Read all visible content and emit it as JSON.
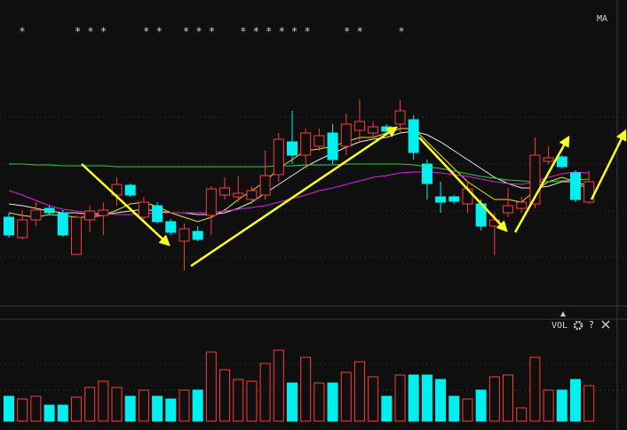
{
  "chart_data": [
    {
      "type": "candlestick",
      "label": "MA",
      "markers": [
        "*",
        "* * *",
        "* *",
        "* * *",
        "* * * * * *",
        "* *",
        "*"
      ],
      "ylim": [
        0,
        350
      ],
      "up_color": "#ff3b3b",
      "down_color": "#00f0f0",
      "open": [
        105,
        82,
        102,
        115,
        110,
        63,
        102,
        107,
        130,
        141,
        105,
        118,
        100,
        78,
        89,
        107,
        130,
        128,
        125,
        130,
        153,
        190,
        175,
        185,
        200,
        185,
        203,
        200,
        207,
        210,
        215,
        165,
        128,
        128,
        120,
        120,
        95,
        110,
        115,
        120,
        168,
        173,
        155,
        122
      ],
      "high": [
        110,
        113,
        122,
        118,
        113,
        107,
        118,
        122,
        150,
        143,
        128,
        122,
        103,
        98,
        95,
        140,
        150,
        152,
        140,
        180,
        200,
        225,
        205,
        205,
        210,
        222,
        238,
        213,
        210,
        237,
        220,
        170,
        145,
        130,
        145,
        125,
        110,
        138,
        128,
        195,
        185,
        175,
        158,
        157
      ],
      "low": [
        82,
        80,
        95,
        107,
        83,
        63,
        88,
        85,
        118,
        128,
        100,
        98,
        85,
        45,
        78,
        85,
        125,
        122,
        120,
        125,
        145,
        165,
        160,
        180,
        165,
        175,
        190,
        195,
        200,
        200,
        170,
        125,
        110,
        120,
        110,
        90,
        62,
        105,
        110,
        115,
        165,
        160,
        122,
        120
      ],
      "close": [
        85,
        102,
        113,
        110,
        85,
        105,
        112,
        113,
        142,
        130,
        122,
        100,
        88,
        92,
        80,
        137,
        138,
        132,
        135,
        152,
        193,
        175,
        200,
        197,
        170,
        210,
        213,
        207,
        202,
        225,
        178,
        143,
        122,
        123,
        137,
        95,
        102,
        118,
        122,
        175,
        172,
        162,
        125,
        145
      ],
      "lines": [
        {
          "color": "#e8e8e8",
          "values": [
            120,
            118,
            115,
            112,
            110,
            110,
            108,
            108,
            110,
            112,
            114,
            112,
            110,
            110,
            108,
            108,
            110,
            115,
            122,
            132,
            142,
            152,
            162,
            170,
            177,
            184,
            190,
            193,
            195,
            200,
            202,
            198,
            190,
            180,
            170,
            160,
            150,
            143,
            138,
            138,
            140,
            145,
            145,
            140
          ]
        },
        {
          "color": "#f0e020",
          "values": [
            110,
            107,
            105,
            108,
            107,
            105,
            105,
            107,
            113,
            120,
            122,
            117,
            110,
            105,
            100,
            105,
            113,
            125,
            135,
            145,
            160,
            170,
            180,
            182,
            185,
            190,
            195,
            195,
            200,
            205,
            205,
            190,
            175,
            160,
            145,
            135,
            125,
            125,
            122,
            135,
            145,
            150,
            145,
            135
          ]
        },
        {
          "color": "#e020e0",
          "values": [
            135,
            130,
            124,
            118,
            114,
            112,
            110,
            109,
            108,
            108,
            109,
            110,
            110,
            110,
            110,
            110,
            112,
            114,
            116,
            118,
            122,
            126,
            130,
            135,
            138,
            142,
            146,
            150,
            152,
            155,
            156,
            156,
            155,
            153,
            151,
            148,
            145,
            143,
            142,
            145,
            150,
            154,
            156,
            155
          ]
        },
        {
          "color": "#30d030",
          "values": [
            165,
            165,
            164,
            164,
            163,
            163,
            163,
            163,
            162,
            162,
            162,
            162,
            162,
            162,
            162,
            162,
            162,
            162,
            162,
            162,
            163,
            163,
            164,
            164,
            164,
            165,
            165,
            165,
            165,
            165,
            164,
            162,
            160,
            157,
            154,
            151,
            149,
            147,
            146,
            145,
            145,
            146,
            147,
            148
          ]
        }
      ]
    },
    {
      "type": "bar",
      "label": "VOL",
      "help": "?",
      "ylim": [
        0,
        113
      ],
      "values": [
        28,
        25,
        28,
        18,
        18,
        27,
        38,
        45,
        38,
        28,
        35,
        28,
        25,
        35,
        35,
        78,
        58,
        47,
        45,
        65,
        80,
        43,
        72,
        43,
        43,
        55,
        67,
        50,
        28,
        52,
        52,
        52,
        47,
        28,
        25,
        35,
        50,
        52,
        15,
        72,
        35,
        35,
        47,
        40
      ]
    }
  ]
}
